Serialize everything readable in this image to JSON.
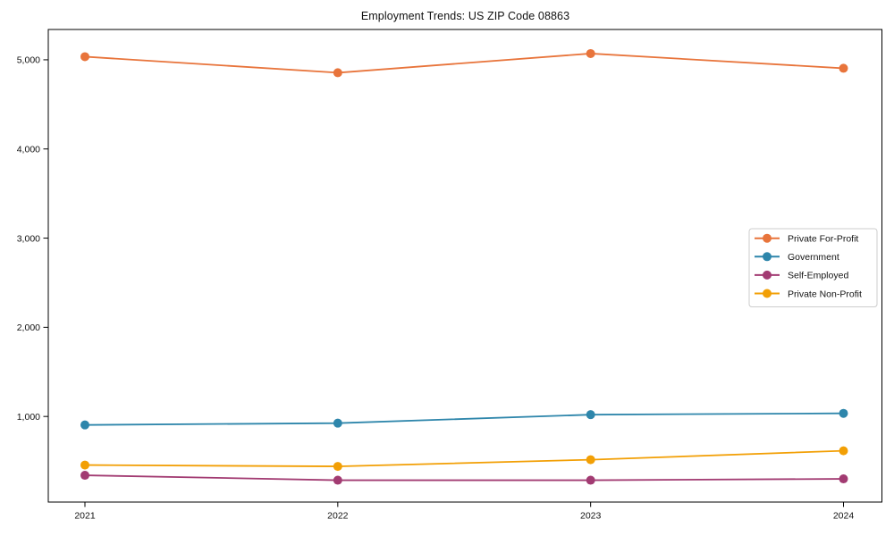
{
  "chart_data": {
    "type": "line",
    "title": "Employment Trends: US ZIP Code 08863",
    "xlabel": "",
    "ylabel": "",
    "categories": [
      "2021",
      "2022",
      "2023",
      "2024"
    ],
    "series": [
      {
        "name": "Private For-Profit",
        "color": "#E8743B",
        "values": [
          5035,
          4855,
          5070,
          4905
        ]
      },
      {
        "name": "Government",
        "color": "#2E86AB",
        "values": [
          905,
          925,
          1020,
          1035
        ]
      },
      {
        "name": "Self-Employed",
        "color": "#A23B72",
        "values": [
          340,
          285,
          285,
          300
        ]
      },
      {
        "name": "Private Non-Profit",
        "color": "#F29F05",
        "values": [
          455,
          440,
          515,
          615
        ]
      }
    ],
    "yticks": [
      1000,
      2000,
      3000,
      4000,
      5000
    ],
    "ytick_labels": [
      "1,000",
      "2,000",
      "3,000",
      "4,000",
      "5,000"
    ],
    "ylim": [
      40,
      5340
    ],
    "grid": false,
    "legend_position": "center-right",
    "marker": "circle",
    "axis_color": "#000000",
    "legend_border_color": "#cccccc"
  }
}
